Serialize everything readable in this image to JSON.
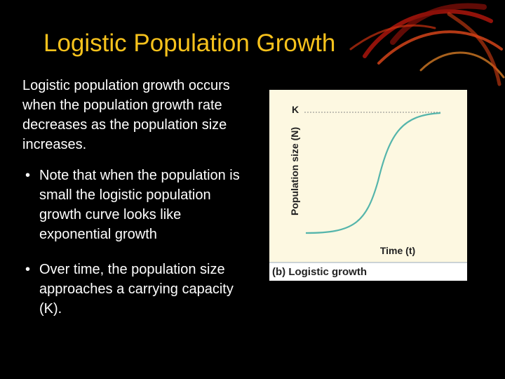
{
  "title": "Logistic Population Growth",
  "intro": "Logistic population growth occurs when the population growth rate decreases as the population size increases.",
  "bullets": [
    "Note that when the population is small the logistic population growth curve looks like exponential growth",
    "Over time, the population size approaches a carrying capacity (K)."
  ],
  "figure": {
    "k_label": "K",
    "y_axis_label": "Population size (N)",
    "x_axis_label": "Time (t)",
    "caption": "(b) Logistic growth"
  }
}
